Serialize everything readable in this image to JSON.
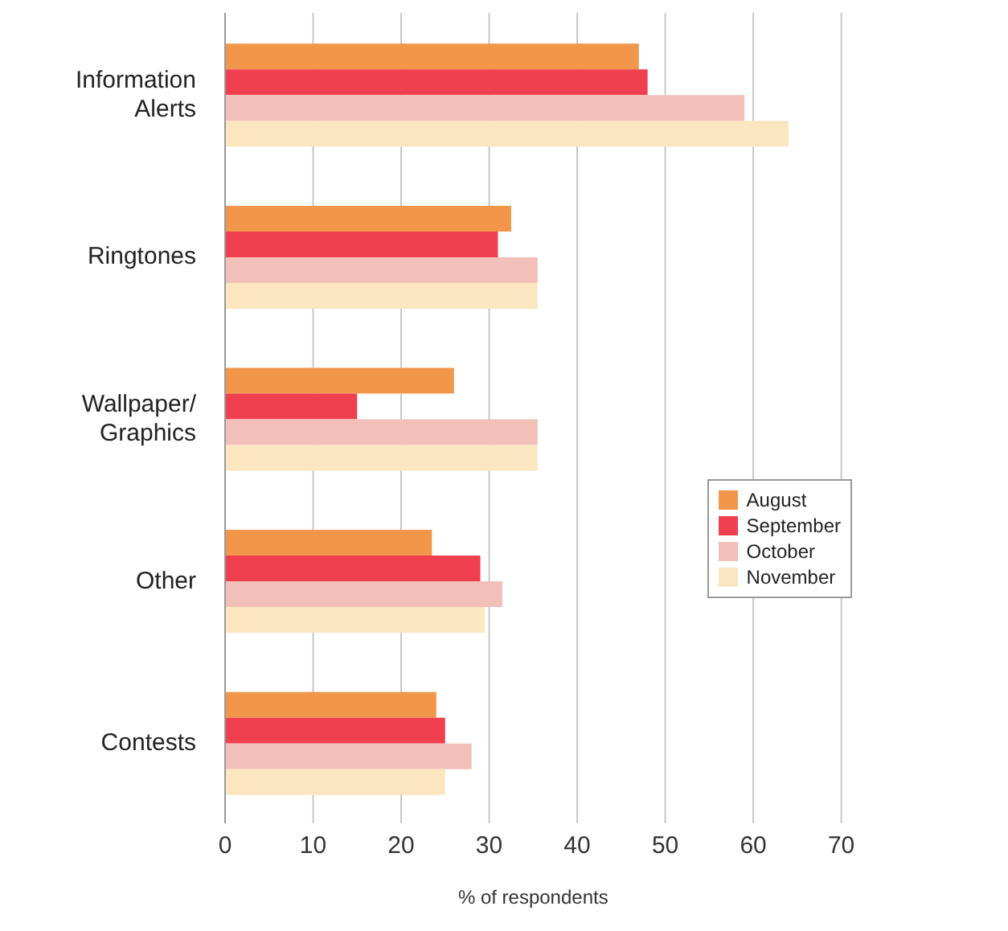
{
  "chart_data": {
    "type": "bar",
    "orientation": "horizontal",
    "xlabel": "% of respondents",
    "categories": [
      "Information Alerts",
      "Ringtones",
      "Wallpaper/ Graphics",
      "Other",
      "Contests"
    ],
    "series": [
      {
        "name": "August",
        "color": "#f2964a",
        "values": [
          47,
          32.5,
          26,
          23.5,
          24
        ]
      },
      {
        "name": "September",
        "color": "#f04050",
        "values": [
          48,
          31,
          15,
          29,
          25
        ]
      },
      {
        "name": "October",
        "color": "#f2c0b8",
        "values": [
          59,
          35.5,
          35.5,
          31.5,
          28
        ]
      },
      {
        "name": "November",
        "color": "#fbe6c0",
        "values": [
          64,
          35.5,
          35.5,
          29.5,
          25
        ]
      }
    ],
    "xlim": [
      0,
      70
    ],
    "xticks": [
      0,
      10,
      20,
      30,
      40,
      50,
      60,
      70
    ],
    "grid": "x",
    "legend": "right"
  }
}
